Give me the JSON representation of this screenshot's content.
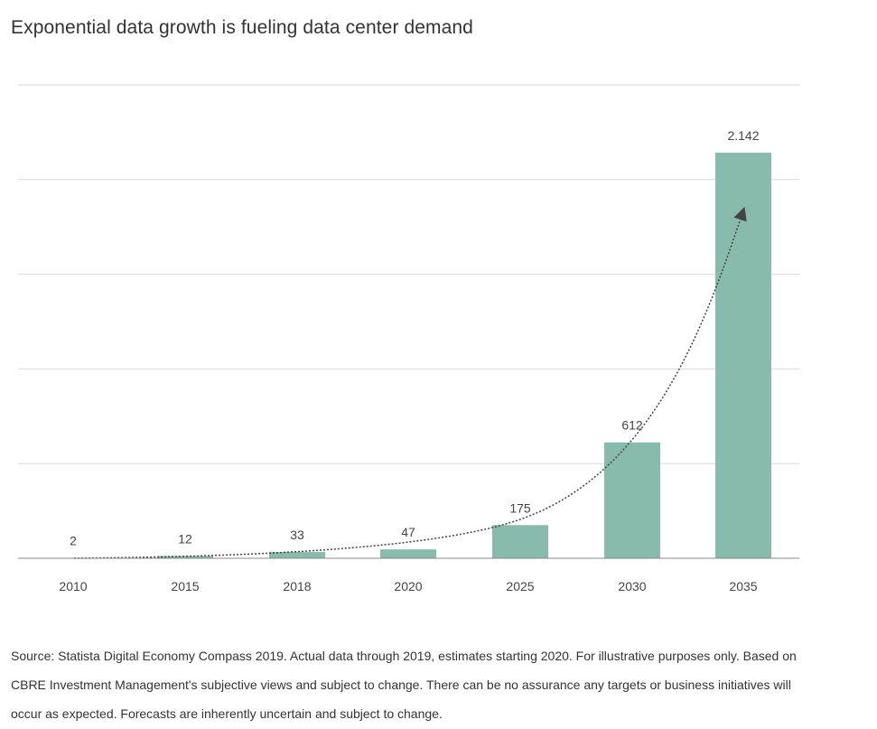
{
  "title": "Exponential data growth is fueling data center demand",
  "source": "Source: Statista Digital Economy Compass 2019. Actual data through 2019, estimates starting 2020. For illustrative purposes only. Based on CBRE Investment Management's subjective views and subject to change. There can be no assurance any targets or business initiatives will occur as expected. Forecasts are inherently uncertain and subject to change.",
  "colors": {
    "bar": "#88bbab",
    "grid": "#d9d9d9",
    "axis": "#888888",
    "trend": "#444444"
  },
  "chart_data": {
    "type": "bar",
    "title": "Exponential data growth is fueling data center demand",
    "categories": [
      "2010",
      "2015",
      "2018",
      "2020",
      "2025",
      "2030",
      "2035"
    ],
    "values": [
      2,
      12,
      33,
      47,
      175,
      612,
      2142
    ],
    "data_labels": [
      "2",
      "12",
      "33",
      "47",
      "175",
      "612",
      "2.142"
    ],
    "xlabel": "",
    "ylabel": "",
    "ylim": [
      0,
      2500
    ],
    "grid": true,
    "legend": "none",
    "annotations": [
      "dotted exponential trend arrow"
    ]
  }
}
